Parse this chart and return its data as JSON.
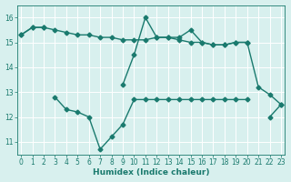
{
  "title": "",
  "xlabel": "Humidex (Indice chaleur)",
  "x_all": [
    0,
    1,
    2,
    3,
    4,
    5,
    6,
    7,
    8,
    9,
    10,
    11,
    12,
    13,
    14,
    15,
    16,
    17,
    18,
    19,
    20,
    21,
    22,
    23
  ],
  "line1": [
    15.3,
    15.6,
    15.6,
    15.5,
    15.4,
    15.3,
    15.3,
    15.2,
    15.2,
    15.1,
    15.1,
    15.1,
    15.2,
    15.2,
    15.1,
    15.0,
    15.0,
    14.9,
    14.9,
    15.0,
    15.0,
    null,
    null,
    null
  ],
  "line2": [
    15.3,
    15.6,
    15.6,
    null,
    null,
    null,
    null,
    null,
    null,
    13.3,
    14.5,
    16.0,
    15.2,
    15.2,
    15.2,
    15.5,
    15.0,
    14.9,
    14.9,
    15.0,
    15.0,
    13.2,
    12.9,
    12.5
  ],
  "line3": [
    null,
    null,
    null,
    12.8,
    12.3,
    12.2,
    12.0,
    10.7,
    11.2,
    11.7,
    12.7,
    12.7,
    12.7,
    12.7,
    12.7,
    12.7,
    12.7,
    12.7,
    12.7,
    12.7,
    12.7,
    null,
    12.0,
    12.5
  ],
  "line_color": "#1a7a6e",
  "bg_color": "#d8f0ee",
  "grid_color": "#ffffff",
  "text_color": "#1a7a6e",
  "ylim": [
    10.5,
    16.5
  ],
  "xlim": [
    -0.3,
    23.3
  ],
  "yticks": [
    11,
    12,
    13,
    14,
    15,
    16
  ],
  "xticks": [
    0,
    1,
    2,
    3,
    4,
    5,
    6,
    7,
    8,
    9,
    10,
    11,
    12,
    13,
    14,
    15,
    16,
    17,
    18,
    19,
    20,
    21,
    22,
    23
  ],
  "line_width": 1.0,
  "marker": "D",
  "marker_size": 2.5
}
